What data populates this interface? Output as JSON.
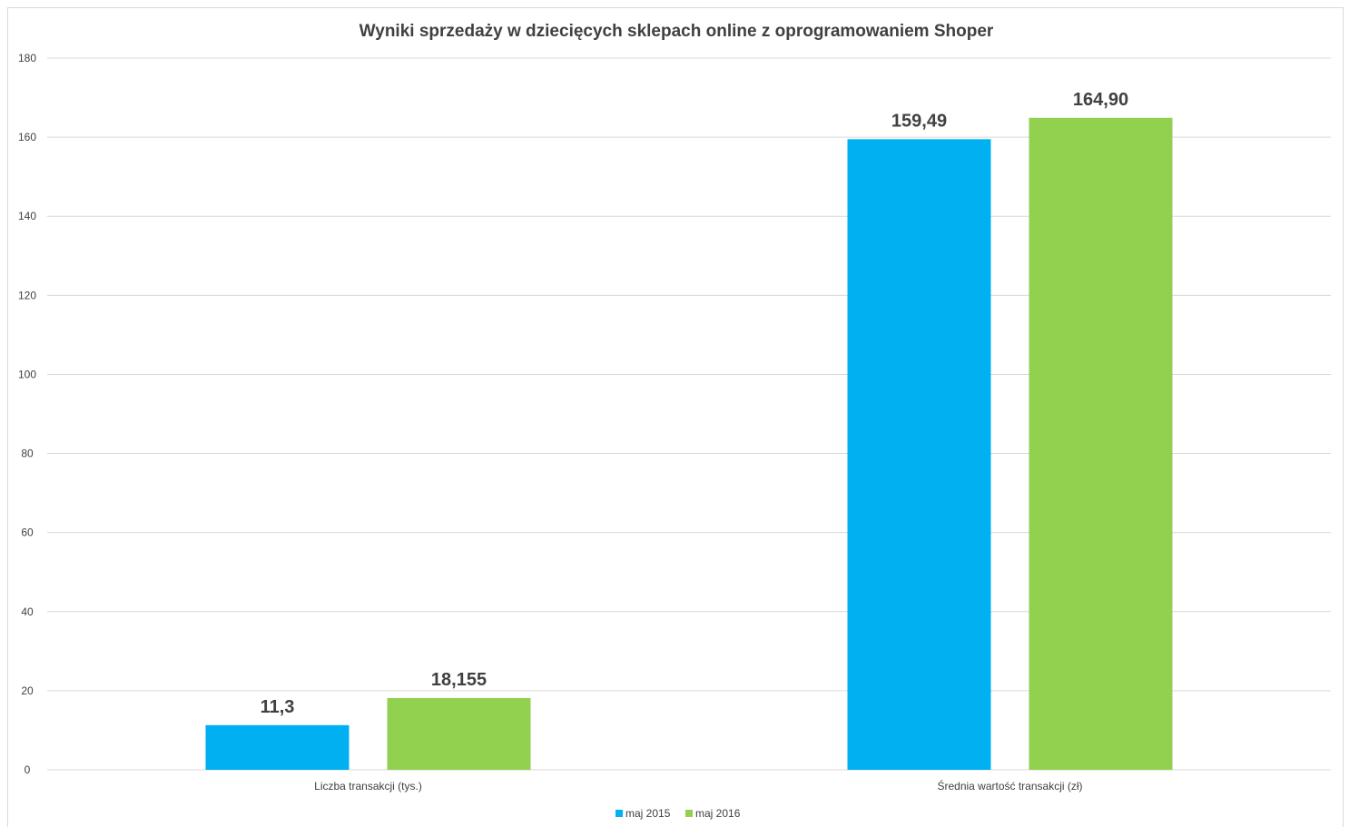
{
  "chart_data": {
    "type": "bar",
    "title": "Wyniki sprzedaży w dziecięcych sklepach online z oprogramowaniem Shoper",
    "categories": [
      "Liczba transakcji (tys.)",
      "Średnia wartość transakcji (zł)"
    ],
    "series": [
      {
        "name": "maj 2015",
        "values": [
          11.3,
          159.49
        ],
        "labels": [
          "11,3",
          "159,49"
        ],
        "color": "#00b0f0"
      },
      {
        "name": "maj 2016",
        "values": [
          18.155,
          164.9
        ],
        "labels": [
          "18,155",
          "164,90"
        ],
        "color": "#92d050"
      }
    ],
    "ylim": [
      0,
      180
    ],
    "yticks": [
      "0",
      "20",
      "40",
      "60",
      "80",
      "100",
      "120",
      "140",
      "160",
      "180"
    ],
    "grid": true,
    "legend": "bottom"
  }
}
